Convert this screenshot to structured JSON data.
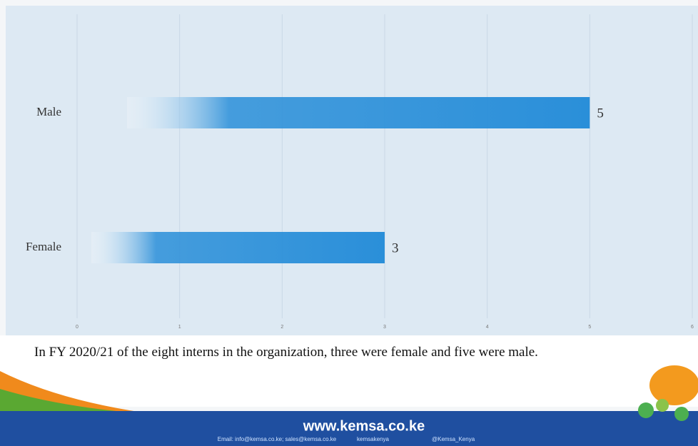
{
  "chart_data": {
    "type": "hbar",
    "categories": [
      "Male",
      "Female"
    ],
    "values": [
      5,
      3
    ],
    "color": "#2a8fd9",
    "xlim": [
      0,
      6
    ],
    "xticks": [
      0,
      1,
      2,
      3,
      4,
      5,
      6
    ],
    "grid": true
  },
  "caption": "In FY 2020/21 of the eight interns in the organization, three were female and five were male.",
  "footer": {
    "website": "www.kemsa.co.ke",
    "email": "Email: info@kemsa.co.ke; sales@kemsa.co.ke",
    "facebook": "kemsakenya",
    "twitter": "@Kemsa_Kenya"
  }
}
